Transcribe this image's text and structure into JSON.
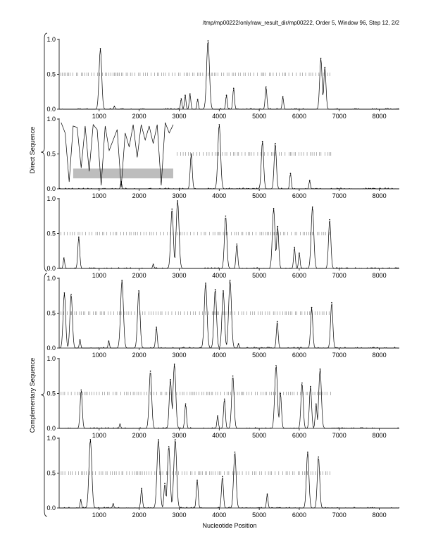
{
  "header": {
    "title": "/tmp/mp00222/only/raw_result_dir/mp00222, Order 5, Window 96, Step 12, 2/2"
  },
  "axes": {
    "xlabel": "Nucleotide Position",
    "group_labels": [
      "Direct Sequence",
      "Complementary Sequence"
    ]
  },
  "chart_data": {
    "type": "line",
    "title": "/tmp/mp00222/only/raw_result_dir/mp00222, Order 5, Window 96, Step 12, 2/2",
    "xlabel": "Nucleotide Position",
    "xlim": [
      0,
      8500
    ],
    "ylim": [
      0,
      1
    ],
    "x_ticks": [
      1000,
      2000,
      3000,
      4000,
      5000,
      6000,
      7000,
      8000
    ],
    "y_ticks": [
      0.0,
      0.5,
      1.0
    ],
    "groups": [
      {
        "label": "Direct Sequence",
        "panels": [
          1,
          2,
          3
        ]
      },
      {
        "label": "Complementary Sequence",
        "panels": [
          4,
          5,
          6
        ]
      }
    ],
    "panels": [
      {
        "frame": 1,
        "peaks": [
          [
            1030,
            0.87
          ],
          [
            1380,
            0.04
          ],
          [
            3050,
            0.15
          ],
          [
            3150,
            0.2
          ],
          [
            3270,
            0.22
          ],
          [
            3460,
            0.14
          ],
          [
            3720,
            0.98
          ],
          [
            4180,
            0.2
          ],
          [
            4360,
            0.3
          ],
          [
            5170,
            0.32
          ],
          [
            5590,
            0.18
          ],
          [
            6540,
            0.73
          ],
          [
            6640,
            0.6
          ]
        ],
        "marks": {
          "start": 0,
          "end": 6800
        },
        "shaded_region": null
      },
      {
        "frame": 2,
        "peaks": [
          [
            1550,
            0.1
          ],
          [
            3300,
            0.5
          ],
          [
            4000,
            0.92
          ],
          [
            5080,
            0.68
          ],
          [
            5400,
            0.65
          ],
          [
            5780,
            0.22
          ],
          [
            6260,
            0.12
          ]
        ],
        "marks": {
          "start": 2900,
          "end": 6800
        },
        "trace_segments": [
          {
            "x": [
              50,
              150,
              250,
              350,
              450,
              550,
              650,
              750,
              850,
              950,
              1050,
              1150,
              1250,
              1350,
              1450,
              1550,
              1650,
              1750,
              1850,
              1950,
              2050,
              2150,
              2250,
              2350,
              2450,
              2550,
              2650,
              2750,
              2850
            ],
            "y": [
              0.95,
              0.8,
              0.1,
              0.9,
              0.88,
              0.3,
              0.9,
              0.25,
              0.92,
              0.85,
              0.05,
              0.9,
              0.55,
              0.7,
              0.85,
              0.02,
              0.8,
              0.6,
              0.92,
              0.45,
              0.92,
              0.7,
              0.9,
              0.65,
              0.92,
              0.05,
              0.95,
              0.8,
              0.92
            ]
          }
        ],
        "shaded_region": {
          "x": [
            350,
            2850
          ],
          "y": [
            0.15,
            0.29
          ]
        }
      },
      {
        "frame": 3,
        "peaks": [
          [
            120,
            0.15
          ],
          [
            490,
            0.45
          ],
          [
            2350,
            0.06
          ],
          [
            2820,
            0.85
          ],
          [
            2960,
            0.97
          ],
          [
            4160,
            0.75
          ],
          [
            4440,
            0.35
          ],
          [
            5360,
            0.86
          ],
          [
            5460,
            0.6
          ],
          [
            5880,
            0.3
          ],
          [
            6000,
            0.22
          ],
          [
            6330,
            0.88
          ],
          [
            6760,
            0.7
          ]
        ],
        "marks": {
          "start": 0,
          "end": 6800
        },
        "shaded_region": null
      },
      {
        "frame": 4,
        "peaks": [
          [
            130,
            0.79
          ],
          [
            300,
            0.77
          ],
          [
            520,
            0.12
          ],
          [
            1240,
            0.1
          ],
          [
            1570,
            0.97
          ],
          [
            1990,
            0.82
          ],
          [
            2430,
            0.3
          ],
          [
            3660,
            0.93
          ],
          [
            3900,
            0.84
          ],
          [
            4100,
            0.82
          ],
          [
            4270,
            0.97
          ],
          [
            4480,
            0.06
          ],
          [
            5450,
            0.38
          ],
          [
            6310,
            0.58
          ],
          [
            6810,
            0.65
          ]
        ],
        "marks": {
          "start": 0,
          "end": 6800
        },
        "shaded_region": null
      },
      {
        "frame": 5,
        "peaks": [
          [
            550,
            0.55
          ],
          [
            1520,
            0.06
          ],
          [
            2280,
            0.82
          ],
          [
            2780,
            0.7
          ],
          [
            2880,
            0.92
          ],
          [
            3160,
            0.35
          ],
          [
            3960,
            0.18
          ],
          [
            4130,
            0.42
          ],
          [
            4340,
            0.75
          ],
          [
            5420,
            0.9
          ],
          [
            5530,
            0.5
          ],
          [
            6070,
            0.65
          ],
          [
            6280,
            0.6
          ],
          [
            6420,
            0.35
          ],
          [
            6520,
            0.85
          ]
        ],
        "marks": {
          "start": 0,
          "end": 6800
        },
        "shaded_region": null
      },
      {
        "frame": 6,
        "peaks": [
          [
            540,
            0.12
          ],
          [
            780,
            0.98
          ],
          [
            1350,
            0.06
          ],
          [
            2060,
            0.28
          ],
          [
            2480,
            0.98
          ],
          [
            2640,
            0.35
          ],
          [
            2740,
            0.88
          ],
          [
            2900,
            0.98
          ],
          [
            3450,
            0.4
          ],
          [
            4080,
            0.45
          ],
          [
            4390,
            0.8
          ],
          [
            5200,
            0.2
          ],
          [
            6210,
            0.8
          ],
          [
            6480,
            0.73
          ]
        ],
        "marks": {
          "start": 0,
          "end": 6800
        },
        "shaded_region": null
      }
    ]
  }
}
